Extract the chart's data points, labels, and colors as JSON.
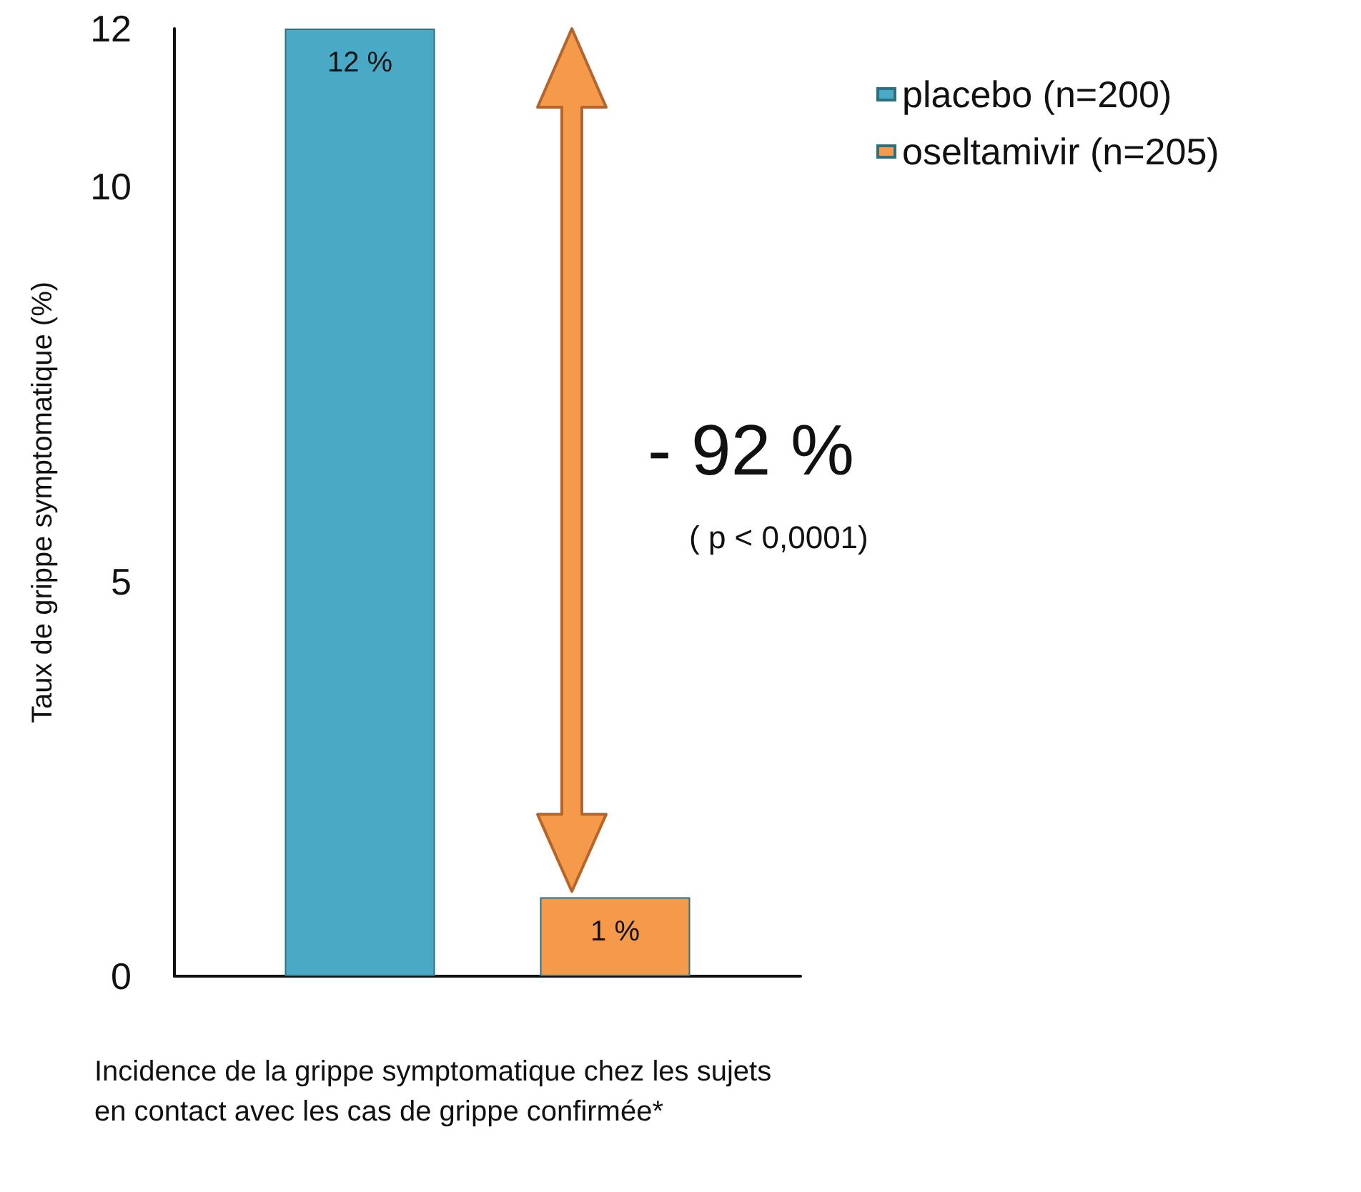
{
  "chart_data": {
    "type": "bar",
    "categories": [
      null
    ],
    "xlabel": "Incidence de la grippe symptomatique chez les sujets en contact avec les cas de grippe confirmée*",
    "ylabel": "Taux de grippe symptomatique (%)",
    "series": [
      {
        "name": "placebo (n=200)",
        "color": "#4aa9c5",
        "values": [
          12
        ],
        "value_labels": [
          "12 %"
        ]
      },
      {
        "name": "oseltamivir (n=205)",
        "color": "#f5994b",
        "values": [
          1
        ],
        "value_labels": [
          "1 %"
        ]
      }
    ],
    "ylim": [
      0,
      12
    ],
    "yticks": [
      0,
      5,
      10,
      12
    ],
    "grid": false,
    "legend": "top right",
    "annotations": [
      "- 92 %",
      "( p < 0,0001)"
    ]
  }
}
